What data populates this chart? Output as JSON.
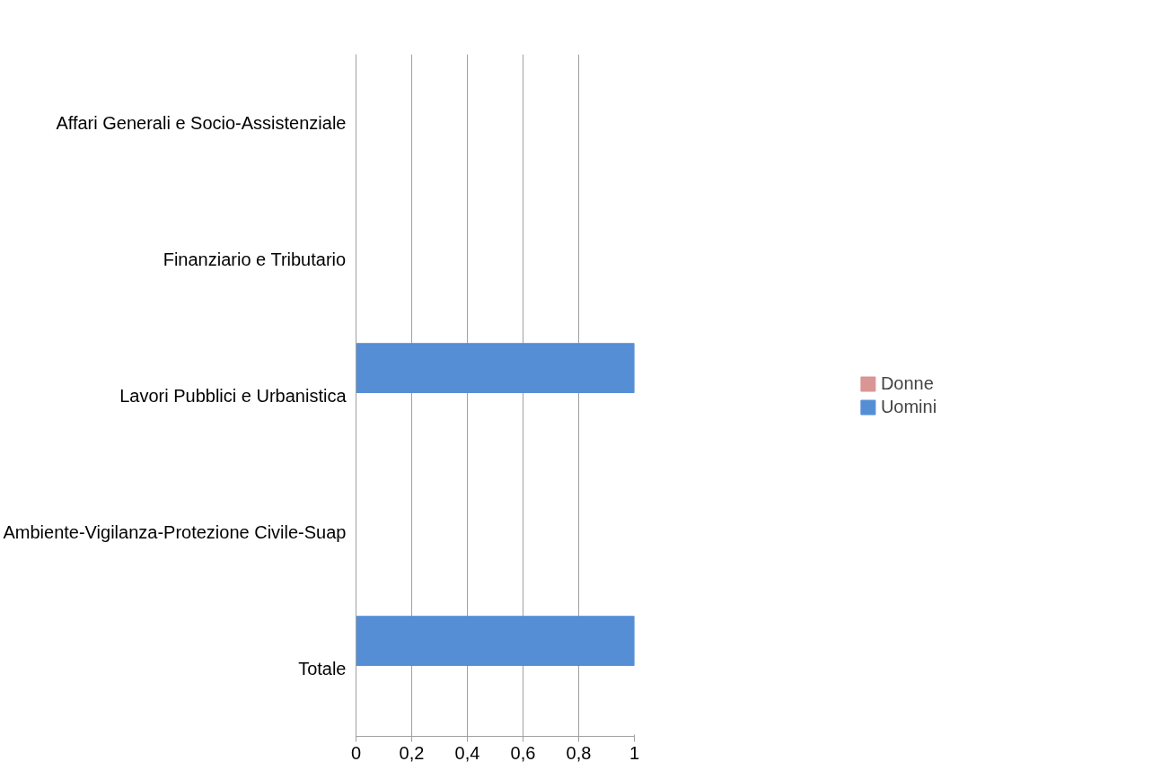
{
  "chart_data": {
    "type": "bar",
    "orientation": "horizontal",
    "categories": [
      "Affari Generali e Socio-Assistenziale",
      "Finanziario e Tributario",
      "Lavori Pubblici e Urbanistica",
      "Ambiente-Vigilanza-Protezione Civile-Suap",
      "Totale"
    ],
    "series": [
      {
        "name": "Donne",
        "color": "#d99694",
        "values": [
          0,
          0,
          0,
          0,
          0
        ]
      },
      {
        "name": "Uomini",
        "color": "#558ed5",
        "values": [
          0,
          0,
          1,
          0,
          1
        ]
      }
    ],
    "xlim": [
      0,
      1
    ],
    "xticks": [
      0,
      {
        "value": 0.2,
        "label": "0,2"
      },
      {
        "value": 0.4,
        "label": "0,4"
      },
      {
        "value": 0.6,
        "label": "0,6"
      },
      {
        "value": 0.8,
        "label": "0,8"
      },
      1
    ],
    "grid": "x",
    "legend": "right"
  }
}
